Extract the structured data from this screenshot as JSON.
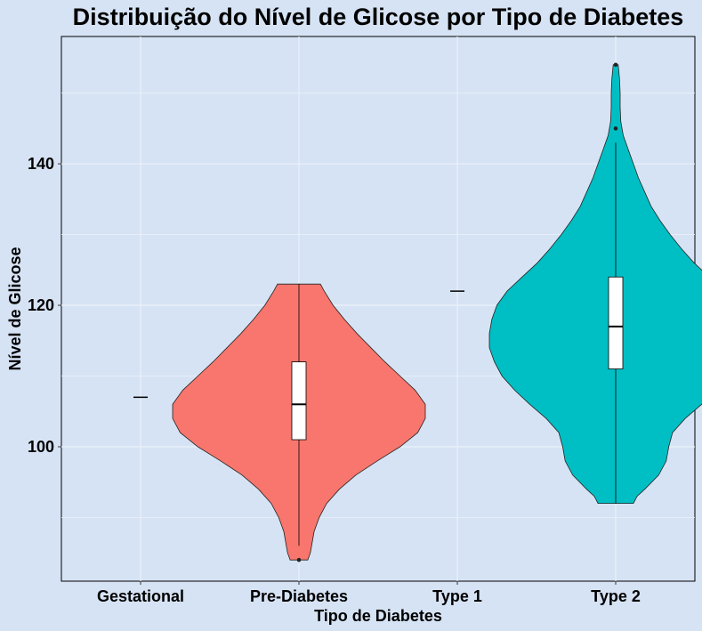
{
  "chart_data": {
    "type": "violin",
    "title": "Distribuição do Nível de Glicose por Tipo de Diabetes",
    "xlabel": "Tipo de Diabetes",
    "ylabel": "Nível de Glicose",
    "categories": [
      "Gestational",
      "Pre-Diabetes",
      "Type 1",
      "Type 2"
    ],
    "ylim": [
      81,
      158
    ],
    "yticks": [
      100,
      120,
      140
    ],
    "grid": true,
    "legend": "none",
    "groups": [
      {
        "category": "Gestational",
        "color": "#f8766d",
        "single_value": 107
      },
      {
        "category": "Pre-Diabetes",
        "color": "#f8766d",
        "range": [
          84,
          123
        ],
        "box": {
          "q1": 101,
          "median": 106,
          "q3": 112
        },
        "whisker": [
          86,
          123
        ],
        "outliers": [
          84
        ],
        "density": [
          [
            84,
            0.07
          ],
          [
            85,
            0.09
          ],
          [
            86,
            0.1
          ],
          [
            88,
            0.12
          ],
          [
            90,
            0.16
          ],
          [
            92,
            0.22
          ],
          [
            94,
            0.32
          ],
          [
            96,
            0.45
          ],
          [
            98,
            0.62
          ],
          [
            100,
            0.8
          ],
          [
            102,
            0.94
          ],
          [
            104,
            1.0
          ],
          [
            106,
            1.0
          ],
          [
            108,
            0.92
          ],
          [
            110,
            0.8
          ],
          [
            112,
            0.68
          ],
          [
            114,
            0.57
          ],
          [
            116,
            0.46
          ],
          [
            118,
            0.36
          ],
          [
            120,
            0.27
          ],
          [
            122,
            0.2
          ],
          [
            123,
            0.17
          ]
        ]
      },
      {
        "category": "Type 1",
        "color": "#00bfc4",
        "single_value": 122
      },
      {
        "category": "Type 2",
        "color": "#00bfc4",
        "range": [
          92,
          154
        ],
        "box": {
          "q1": 111,
          "median": 117,
          "q3": 124
        },
        "whisker": [
          92,
          143
        ],
        "outliers": [
          145,
          154
        ],
        "density": [
          [
            92,
            0.14
          ],
          [
            93,
            0.17
          ],
          [
            94,
            0.23
          ],
          [
            96,
            0.34
          ],
          [
            98,
            0.4
          ],
          [
            100,
            0.42
          ],
          [
            102,
            0.45
          ],
          [
            104,
            0.55
          ],
          [
            106,
            0.68
          ],
          [
            108,
            0.8
          ],
          [
            110,
            0.9
          ],
          [
            112,
            0.96
          ],
          [
            114,
            1.0
          ],
          [
            116,
            1.0
          ],
          [
            118,
            0.98
          ],
          [
            120,
            0.94
          ],
          [
            122,
            0.86
          ],
          [
            124,
            0.74
          ],
          [
            126,
            0.62
          ],
          [
            128,
            0.52
          ],
          [
            130,
            0.43
          ],
          [
            132,
            0.35
          ],
          [
            134,
            0.28
          ],
          [
            136,
            0.23
          ],
          [
            138,
            0.18
          ],
          [
            140,
            0.14
          ],
          [
            142,
            0.1
          ],
          [
            144,
            0.06
          ],
          [
            146,
            0.04
          ],
          [
            148,
            0.035
          ],
          [
            150,
            0.035
          ],
          [
            152,
            0.03
          ],
          [
            154,
            0.02
          ]
        ]
      }
    ]
  }
}
